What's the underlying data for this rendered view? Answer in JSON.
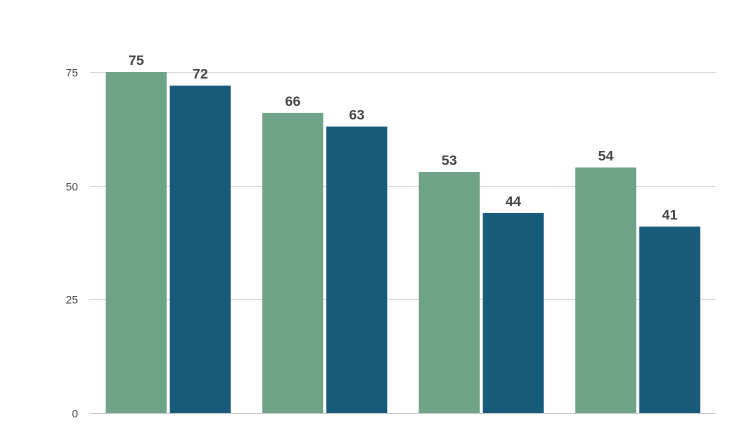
{
  "chart_data": {
    "type": "bar",
    "categories": [
      "",
      "",
      "",
      ""
    ],
    "series": [
      {
        "values": [
          75,
          66,
          53,
          54
        ],
        "color": "#6fa387"
      },
      {
        "values": [
          72,
          63,
          44,
          41
        ],
        "color": "#175a7a"
      }
    ],
    "y_ticks": [
      "0",
      "25",
      "50",
      "75"
    ],
    "ylim": [
      0,
      75
    ],
    "grid": true,
    "legend": "none",
    "title": "",
    "xlabel": "",
    "ylabel": ""
  }
}
